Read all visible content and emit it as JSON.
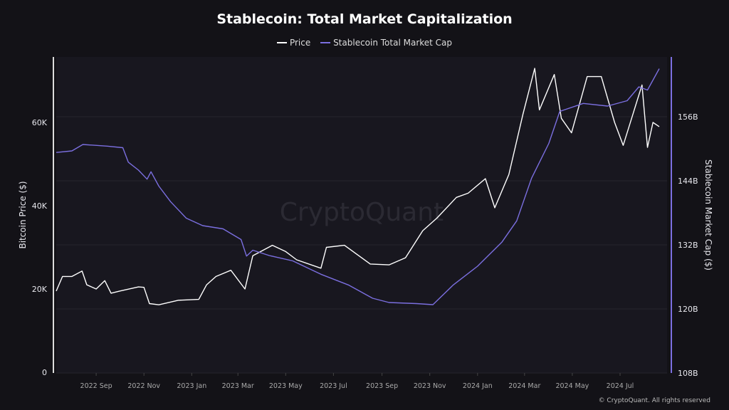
{
  "chart_data": {
    "type": "line",
    "title": "Stablecoin: Total Market Capitalization",
    "ylabel_left": "Bitcoin Price ($)",
    "ylabel_right": "Stablecoin Market Cap ($)",
    "left_ticks": [
      "0",
      "20K",
      "40K",
      "60K"
    ],
    "left_tick_values": [
      0,
      20000,
      40000,
      60000
    ],
    "right_ticks": [
      "108B",
      "120B",
      "132B",
      "144B",
      "156B"
    ],
    "right_tick_values": [
      108,
      120,
      132,
      144,
      156
    ],
    "ylim_left": [
      0,
      76000
    ],
    "ylim_right": [
      108,
      167
    ],
    "x_ticks": [
      "2022 Sep",
      "2022 Nov",
      "2023 Jan",
      "2023 Mar",
      "2023 May",
      "2023 Jul",
      "2023 Sep",
      "2023 Nov",
      "2024 Jan",
      "2024 Mar",
      "2024 May",
      "2024 Jul"
    ],
    "x_tick_dates": [
      "2022-09-01",
      "2022-11-01",
      "2023-01-01",
      "2023-03-01",
      "2023-05-01",
      "2023-07-01",
      "2023-09-01",
      "2023-11-01",
      "2024-01-01",
      "2024-03-01",
      "2024-05-01",
      "2024-07-01"
    ],
    "xlim": [
      "2022-07-12",
      "2024-08-30"
    ],
    "grid": "horizontal",
    "legend": "top-center",
    "watermark": "CryptoQuant",
    "series": [
      {
        "name": "Price",
        "axis": "left",
        "color": "#ffffff",
        "points": [
          [
            "2022-07-12",
            19500
          ],
          [
            "2022-07-20",
            23000
          ],
          [
            "2022-08-01",
            23000
          ],
          [
            "2022-08-14",
            24300
          ],
          [
            "2022-08-20",
            21000
          ],
          [
            "2022-09-01",
            20000
          ],
          [
            "2022-09-12",
            22000
          ],
          [
            "2022-09-20",
            19000
          ],
          [
            "2022-10-01",
            19500
          ],
          [
            "2022-10-25",
            20500
          ],
          [
            "2022-11-01",
            20400
          ],
          [
            "2022-11-08",
            16500
          ],
          [
            "2022-11-20",
            16200
          ],
          [
            "2022-12-15",
            17300
          ],
          [
            "2023-01-10",
            17500
          ],
          [
            "2023-01-20",
            21000
          ],
          [
            "2023-02-01",
            23000
          ],
          [
            "2023-02-20",
            24500
          ],
          [
            "2023-03-10",
            20000
          ],
          [
            "2023-03-20",
            28000
          ],
          [
            "2023-04-14",
            30500
          ],
          [
            "2023-05-01",
            29000
          ],
          [
            "2023-05-15",
            27000
          ],
          [
            "2023-06-15",
            25000
          ],
          [
            "2023-06-22",
            30000
          ],
          [
            "2023-07-15",
            30500
          ],
          [
            "2023-08-17",
            26000
          ],
          [
            "2023-09-10",
            25800
          ],
          [
            "2023-10-01",
            27500
          ],
          [
            "2023-10-23",
            34000
          ],
          [
            "2023-11-10",
            37000
          ],
          [
            "2023-12-05",
            42000
          ],
          [
            "2023-12-20",
            43000
          ],
          [
            "2024-01-11",
            46500
          ],
          [
            "2024-01-23",
            39500
          ],
          [
            "2024-02-10",
            47500
          ],
          [
            "2024-02-28",
            62000
          ],
          [
            "2024-03-14",
            73000
          ],
          [
            "2024-03-20",
            63000
          ],
          [
            "2024-04-08",
            71500
          ],
          [
            "2024-04-17",
            61000
          ],
          [
            "2024-04-30",
            57500
          ],
          [
            "2024-05-20",
            71000
          ],
          [
            "2024-06-07",
            71000
          ],
          [
            "2024-06-24",
            60000
          ],
          [
            "2024-07-05",
            54500
          ],
          [
            "2024-07-29",
            69000
          ],
          [
            "2024-08-05",
            54000
          ],
          [
            "2024-08-12",
            60000
          ],
          [
            "2024-08-20",
            59000
          ]
        ]
      },
      {
        "name": "Stablecoin Total Market Cap",
        "axis": "right",
        "color": "#7b6fe0",
        "points": [
          [
            "2022-07-12",
            149.3
          ],
          [
            "2022-08-01",
            149.6
          ],
          [
            "2022-08-15",
            150.8
          ],
          [
            "2022-09-15",
            150.5
          ],
          [
            "2022-10-05",
            150.2
          ],
          [
            "2022-10-12",
            147.5
          ],
          [
            "2022-10-25",
            146.0
          ],
          [
            "2022-11-05",
            144.3
          ],
          [
            "2022-11-10",
            145.7
          ],
          [
            "2022-11-20",
            143.0
          ],
          [
            "2022-12-05",
            140.1
          ],
          [
            "2022-12-25",
            137.0
          ],
          [
            "2023-01-15",
            135.6
          ],
          [
            "2023-02-10",
            135.0
          ],
          [
            "2023-03-05",
            133.0
          ],
          [
            "2023-03-12",
            129.9
          ],
          [
            "2023-03-20",
            131.0
          ],
          [
            "2023-04-10",
            130.0
          ],
          [
            "2023-05-10",
            129.0
          ],
          [
            "2023-06-15",
            126.5
          ],
          [
            "2023-07-20",
            124.5
          ],
          [
            "2023-08-20",
            122.0
          ],
          [
            "2023-09-10",
            121.2
          ],
          [
            "2023-10-15",
            121.0
          ],
          [
            "2023-11-05",
            120.8
          ],
          [
            "2023-12-01",
            124.5
          ],
          [
            "2024-01-01",
            128.0
          ],
          [
            "2024-02-01",
            132.5
          ],
          [
            "2024-02-20",
            136.5
          ],
          [
            "2024-03-10",
            144.5
          ],
          [
            "2024-04-01",
            151.0
          ],
          [
            "2024-04-15",
            157.0
          ],
          [
            "2024-05-15",
            158.5
          ],
          [
            "2024-06-15",
            158.0
          ],
          [
            "2024-07-10",
            159.0
          ],
          [
            "2024-07-25",
            161.6
          ],
          [
            "2024-08-05",
            161.0
          ],
          [
            "2024-08-20",
            165.0
          ]
        ]
      }
    ]
  },
  "footer": "© CryptoQuant. All rights reserved"
}
